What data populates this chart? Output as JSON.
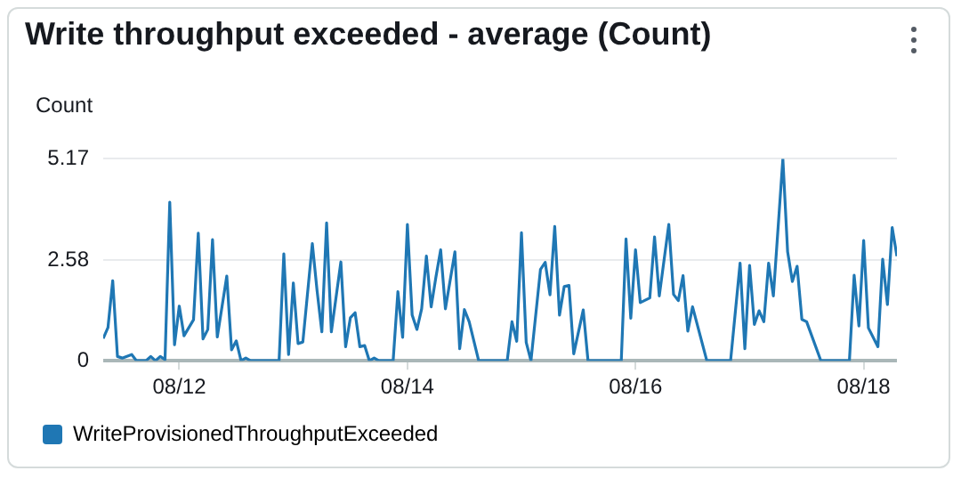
{
  "chart_data": {
    "type": "line",
    "title": "Write throughput exceeded - average (Count)",
    "ylabel": "Count",
    "x": [
      "--08-11T08:00",
      "--08-11T09:00",
      "--08-11T10:00",
      "--08-11T11:00",
      "--08-11T12:00",
      "--08-11T14:00",
      "--08-11T15:00",
      "--08-11T17:00",
      "--08-11T18:00",
      "--08-11T19:00",
      "--08-11T20:00",
      "--08-11T21:00",
      "--08-11T22:00",
      "--08-11T23:00",
      "--08-12T00:00",
      "--08-12T01:00",
      "--08-12T03:00",
      "--08-12T04:00",
      "--08-12T05:00",
      "--08-12T06:00",
      "--08-12T07:00",
      "--08-12T08:00",
      "--08-12T10:00",
      "--08-12T11:00",
      "--08-12T12:00",
      "--08-12T13:00",
      "--08-12T14:00",
      "--08-12T15:00",
      "--08-12T21:00",
      "--08-12T22:00",
      "--08-12T23:00",
      "--08-13T00:00",
      "--08-13T01:00",
      "--08-13T02:00",
      "--08-13T04:00",
      "--08-13T05:00",
      "--08-13T06:00",
      "--08-13T07:00",
      "--08-13T08:00",
      "--08-13T10:00",
      "--08-13T11:00",
      "--08-13T12:00",
      "--08-13T13:00",
      "--08-13T14:00",
      "--08-13T15:00",
      "--08-13T16:00",
      "--08-13T17:00",
      "--08-13T18:00",
      "--08-13T21:00",
      "--08-13T22:00",
      "--08-13T23:00",
      "--08-14T00:00",
      "--08-14T01:00",
      "--08-14T02:00",
      "--08-14T03:00",
      "--08-14T04:00",
      "--08-14T05:00",
      "--08-14T06:00",
      "--08-14T07:00",
      "--08-14T08:00",
      "--08-14T10:00",
      "--08-14T11:00",
      "--08-14T12:00",
      "--08-14T13:00",
      "--08-14T15:00",
      "--08-14T21:00",
      "--08-14T22:00",
      "--08-14T23:00",
      "--08-15T00:00",
      "--08-15T01:00",
      "--08-15T02:00",
      "--08-15T04:00",
      "--08-15T05:00",
      "--08-15T06:00",
      "--08-15T07:00",
      "--08-15T08:00",
      "--08-15T09:00",
      "--08-15T10:00",
      "--08-15T11:00",
      "--08-15T13:00",
      "--08-15T14:00",
      "--08-15T21:00",
      "--08-15T22:00",
      "--08-15T23:00",
      "--08-16T00:00",
      "--08-16T01:00",
      "--08-16T03:00",
      "--08-16T04:00",
      "--08-16T05:00",
      "--08-16T07:00",
      "--08-16T08:00",
      "--08-16T09:00",
      "--08-16T10:00",
      "--08-16T11:00",
      "--08-16T12:00",
      "--08-16T15:00",
      "--08-16T20:00",
      "--08-16T22:00",
      "--08-16T23:00",
      "--08-17T00:00",
      "--08-17T01:00",
      "--08-17T02:00",
      "--08-17T03:00",
      "--08-17T04:00",
      "--08-17T05:00",
      "--08-17T07:00",
      "--08-17T08:00",
      "--08-17T09:00",
      "--08-17T10:00",
      "--08-17T11:00",
      "--08-17T12:00",
      "--08-17T15:00",
      "--08-17T21:00",
      "--08-17T22:00",
      "--08-17T23:00",
      "--08-18T00:00",
      "--08-18T01:00",
      "--08-18T03:00",
      "--08-18T04:00",
      "--08-18T05:00",
      "--08-18T06:00",
      "--08-18T07:00"
    ],
    "series": [
      {
        "name": "WriteProvisionedThroughputExceeded",
        "color": "#1f77b4",
        "values": [
          0.57,
          0.85,
          2.05,
          0.11,
          0.07,
          0.16,
          0,
          0,
          0.11,
          0,
          0.11,
          0.03,
          4.06,
          0.41,
          1.4,
          0.64,
          1.05,
          3.27,
          0.56,
          0.8,
          3.1,
          0.61,
          2.17,
          0.28,
          0.51,
          0,
          0.07,
          0,
          0,
          2.74,
          0.16,
          1.99,
          0.44,
          0.48,
          3.0,
          1.79,
          0.74,
          3.53,
          0.74,
          2.53,
          0.36,
          1.1,
          1.23,
          0.36,
          0.39,
          0,
          0.07,
          0,
          0,
          1.77,
          0.6,
          3.49,
          1.17,
          0.8,
          1.33,
          2.68,
          1.38,
          2.14,
          2.84,
          1.33,
          2.79,
          0.31,
          1.31,
          1.0,
          0,
          0,
          1.0,
          0.5,
          3.28,
          0.47,
          0,
          2.34,
          2.52,
          1.69,
          3.44,
          1.17,
          1.9,
          1.93,
          0.18,
          1.3,
          0,
          0,
          3.12,
          1.09,
          2.84,
          1.49,
          1.61,
          3.17,
          1.66,
          3.49,
          1.7,
          1.54,
          2.18,
          0.76,
          1.38,
          0,
          0,
          2.5,
          0.31,
          2.44,
          0.93,
          1.28,
          1.0,
          2.5,
          1.66,
          5.17,
          2.79,
          2.03,
          2.42,
          1.06,
          1.0,
          0,
          0,
          2.19,
          0.89,
          3.08,
          0.84,
          0.36,
          2.6,
          1.44,
          3.41,
          2.68
        ]
      }
    ],
    "xlim": [
      "--08-11T08:00",
      "--08-18T07:00"
    ],
    "xticks": [
      {
        "value": "--08-12",
        "label": "08/12"
      },
      {
        "value": "--08-14",
        "label": "08/14"
      },
      {
        "value": "--08-16",
        "label": "08/16"
      },
      {
        "value": "--08-18",
        "label": "08/18"
      }
    ],
    "ylim": [
      0,
      5.17
    ],
    "yticks": [
      0,
      2.58,
      5.17
    ],
    "grid": "y",
    "legend": "bottom left",
    "marker": "none",
    "line_style": "solid"
  }
}
